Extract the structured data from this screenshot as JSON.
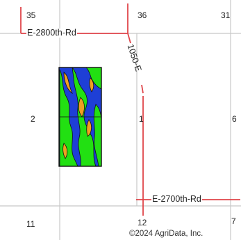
{
  "sections": {
    "s35": "35",
    "s36": "36",
    "s31": "31",
    "s2": "2",
    "s1": "1",
    "s6": "6",
    "s11": "11",
    "s12": "12",
    "s7": "7"
  },
  "roads": {
    "north": "E-2800th-Rd",
    "south": "E-2700th-Rd",
    "vertical": "1050-E"
  },
  "copyright": "©2024 AgriData, Inc.",
  "colors": {
    "grid": "#c8c8c8",
    "road": "#e0454a",
    "zone_blue": "#1e3fd6",
    "zone_green": "#22e012",
    "zone_orange": "#f0a020",
    "field_outline": "#111111"
  }
}
